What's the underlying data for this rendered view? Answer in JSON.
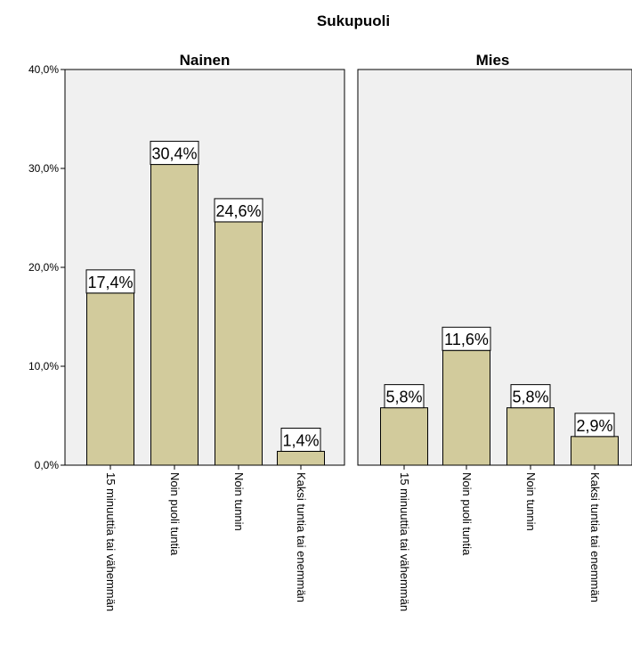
{
  "chart_data": {
    "type": "bar",
    "title": "Sukupuoli",
    "y_ticks": [
      "0,0%",
      "10,0%",
      "20,0%",
      "30,0%",
      "40,0%"
    ],
    "ylim": [
      0,
      40
    ],
    "grid": false,
    "bar_color": "#d2cb9c",
    "panel_background": "#f0f0f0",
    "categories": [
      "15 minuuttia tai vähemmän",
      "Noin puoli tuntia",
      "Noin tunnin",
      "Kaksi tuntia tai enemmän"
    ],
    "series": [
      {
        "name": "Nainen",
        "values": [
          17.4,
          30.4,
          24.6,
          1.4
        ],
        "labels": [
          "17,4%",
          "30,4%",
          "24,6%",
          "1,4%"
        ]
      },
      {
        "name": "Mies",
        "values": [
          5.8,
          11.6,
          5.8,
          2.9
        ],
        "labels": [
          "5,8%",
          "11,6%",
          "5,8%",
          "2,9%"
        ]
      }
    ]
  }
}
